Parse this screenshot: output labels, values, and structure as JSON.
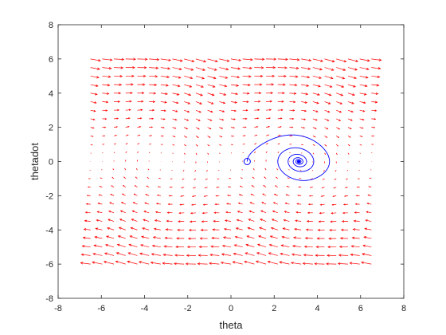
{
  "chart_data": {
    "type": "quiver",
    "title": "",
    "xlabel": "theta",
    "ylabel": "thetadot",
    "xlim": [
      -8,
      8
    ],
    "ylim": [
      -8,
      8
    ],
    "xticks": [
      -8,
      -6,
      -4,
      -2,
      0,
      2,
      4,
      6,
      8
    ],
    "yticks": [
      -8,
      -6,
      -4,
      -2,
      0,
      2,
      4,
      6,
      8
    ],
    "grid": false,
    "legend": "none",
    "series": [
      {
        "kind": "vector-field",
        "color": "#ff0000",
        "x_range": [
          -6.5,
          6.5
        ],
        "y_range": [
          -6,
          6
        ],
        "field": "d(theta)/dt = thetadot; d(thetadot)/dt = sin(theta) - 0.2*thetadot"
      },
      {
        "kind": "trajectory",
        "color": "#0000ff",
        "start": [
          0.75,
          0
        ],
        "end": [
          3.14159,
          0
        ],
        "start_marker": "circle"
      }
    ]
  }
}
